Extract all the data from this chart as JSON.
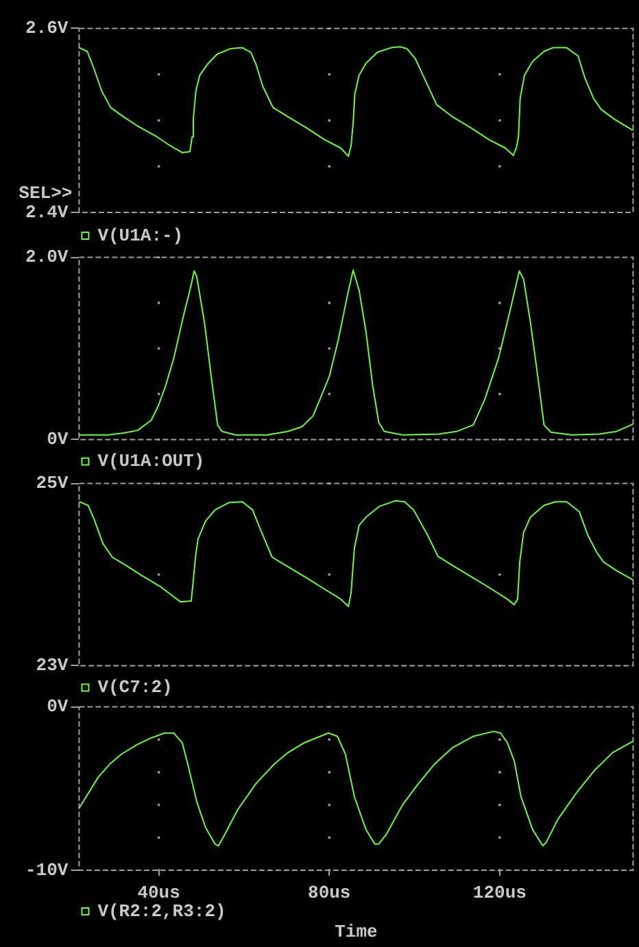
{
  "chart_data": [
    {
      "type": "line",
      "annotations": [
        "SEL>>"
      ],
      "xlim": [
        21.3,
        151.3
      ],
      "xticks": [
        40,
        80,
        120
      ],
      "ylim": [
        2.4,
        2.6
      ],
      "yticks": [
        {
          "value": 2.4,
          "label": "2.4V"
        },
        {
          "value": 2.45,
          "label": null
        },
        {
          "value": 2.5,
          "label": null
        },
        {
          "value": 2.55,
          "label": null
        },
        {
          "value": 2.6,
          "label": "2.6V"
        }
      ],
      "grid": true,
      "legend": "bottom left",
      "tick_labels": "y",
      "x": [
        21.3,
        23.2,
        24.8,
        26.6,
        28.7,
        31.7,
        35.0,
        39.3,
        42.5,
        45.5,
        47.3,
        47.8,
        48.1,
        48.7,
        49.6,
        51.6,
        53.7,
        56.9,
        59.6,
        61.6,
        62.8,
        64.4,
        66.8,
        70.3,
        74.6,
        78.9,
        82.7,
        84.5,
        85.1,
        85.6,
        86.0,
        87.0,
        88.6,
        91.3,
        94.5,
        96.6,
        98.2,
        100.2,
        102.5,
        105.2,
        108.9,
        113.2,
        117.5,
        121.3,
        123.2,
        123.9,
        124.4,
        124.8,
        125.8,
        127.7,
        130.4,
        132.5,
        135.7,
        138.4,
        140.0,
        142.0,
        143.8,
        147.0,
        151.3
      ],
      "series": [
        {
          "name": "V(U1A:-)",
          "color": "#66ff33",
          "values": [
            2.579,
            2.575,
            2.556,
            2.532,
            2.514,
            2.504,
            2.494,
            2.483,
            2.473,
            2.465,
            2.466,
            2.482,
            2.502,
            2.532,
            2.549,
            2.562,
            2.572,
            2.578,
            2.579,
            2.574,
            2.561,
            2.537,
            2.514,
            2.504,
            2.492,
            2.479,
            2.47,
            2.461,
            2.472,
            2.497,
            2.529,
            2.549,
            2.562,
            2.574,
            2.579,
            2.58,
            2.578,
            2.567,
            2.544,
            2.517,
            2.504,
            2.492,
            2.479,
            2.47,
            2.462,
            2.47,
            2.482,
            2.524,
            2.549,
            2.564,
            2.575,
            2.579,
            2.579,
            2.57,
            2.546,
            2.524,
            2.512,
            2.501,
            2.489
          ]
        }
      ]
    },
    {
      "type": "line",
      "xlim": [
        21.3,
        151.3
      ],
      "xticks": [
        40,
        80,
        120
      ],
      "ylim": [
        0,
        2
      ],
      "yticks": [
        {
          "value": 0,
          "label": "0V"
        },
        {
          "value": 0.5,
          "label": null
        },
        {
          "value": 1,
          "label": null
        },
        {
          "value": 1.5,
          "label": null
        },
        {
          "value": 2,
          "label": "2.0V"
        }
      ],
      "grid": true,
      "legend": "bottom left",
      "tick_labels": "y",
      "x": [
        21.3,
        28.0,
        31.7,
        35.0,
        38.2,
        39.8,
        41.6,
        43.5,
        45.7,
        47.3,
        48.3,
        48.9,
        50.7,
        52.3,
        53.8,
        54.8,
        58.0,
        65.5,
        70.3,
        73.6,
        76.2,
        77.8,
        80.0,
        82.1,
        84.3,
        85.6,
        87.0,
        88.6,
        90.2,
        91.6,
        92.9,
        97.2,
        105.7,
        110.0,
        113.8,
        116.5,
        119.7,
        122.3,
        124.6,
        125.6,
        127.2,
        128.8,
        130.4,
        132.0,
        136.8,
        143.3,
        147.5,
        151.3
      ],
      "series": [
        {
          "name": "V(U1A:OUT)",
          "color": "#66ff33",
          "values": [
            0.05,
            0.05,
            0.07,
            0.1,
            0.21,
            0.36,
            0.59,
            0.89,
            1.34,
            1.64,
            1.85,
            1.79,
            1.29,
            0.69,
            0.16,
            0.09,
            0.05,
            0.05,
            0.09,
            0.14,
            0.26,
            0.44,
            0.69,
            1.09,
            1.59,
            1.86,
            1.64,
            1.19,
            0.59,
            0.19,
            0.09,
            0.05,
            0.06,
            0.09,
            0.16,
            0.44,
            0.89,
            1.39,
            1.85,
            1.76,
            1.29,
            0.74,
            0.16,
            0.08,
            0.05,
            0.06,
            0.09,
            0.17
          ]
        }
      ]
    },
    {
      "type": "line",
      "xlim": [
        21.3,
        151.3
      ],
      "xticks": [
        40,
        80,
        120
      ],
      "ylim": [
        23,
        25
      ],
      "yticks": [
        {
          "value": 23,
          "label": "23V"
        },
        {
          "value": 24,
          "label": null
        },
        {
          "value": 25,
          "label": "25V"
        }
      ],
      "grid": true,
      "legend": "bottom left",
      "tick_labels": "y",
      "x": [
        21.3,
        23.4,
        24.8,
        26.9,
        29.1,
        32.3,
        36.0,
        40.3,
        45.1,
        47.6,
        48.0,
        48.6,
        49.2,
        51.0,
        53.2,
        56.4,
        59.6,
        62.0,
        63.9,
        66.6,
        69.8,
        74.1,
        78.9,
        82.7,
        84.5,
        85.1,
        85.9,
        87.0,
        88.6,
        91.8,
        95.5,
        97.7,
        99.8,
        103.0,
        105.5,
        108.9,
        113.2,
        118.1,
        121.8,
        123.4,
        124.2,
        124.7,
        125.6,
        127.2,
        130.4,
        133.1,
        135.7,
        138.7,
        140.6,
        142.7,
        144.3,
        147.5,
        151.3
      ],
      "series": [
        {
          "name": "V(C7:2)",
          "color": "#66ff33",
          "values": [
            24.8,
            24.76,
            24.61,
            24.34,
            24.19,
            24.1,
            23.99,
            23.87,
            23.7,
            23.71,
            23.89,
            24.19,
            24.39,
            24.59,
            24.71,
            24.79,
            24.8,
            24.71,
            24.49,
            24.19,
            24.1,
            23.98,
            23.84,
            23.73,
            23.65,
            23.79,
            24.29,
            24.54,
            24.63,
            24.75,
            24.81,
            24.8,
            24.71,
            24.44,
            24.2,
            24.1,
            23.98,
            23.84,
            23.73,
            23.67,
            23.73,
            24.14,
            24.46,
            24.63,
            24.76,
            24.8,
            24.8,
            24.69,
            24.44,
            24.25,
            24.14,
            24.04,
            23.94
          ]
        }
      ]
    },
    {
      "type": "line",
      "xlabel": "Time",
      "xlim": [
        21.3,
        151.3
      ],
      "xticks": [
        {
          "value": 40,
          "label": "40us"
        },
        {
          "value": 80,
          "label": "80us"
        },
        {
          "value": 120,
          "label": "120us"
        }
      ],
      "ylim": [
        -10,
        0
      ],
      "yticks": [
        {
          "value": -10,
          "label": "-10V"
        },
        {
          "value": -8,
          "label": null
        },
        {
          "value": -6,
          "label": null
        },
        {
          "value": -4,
          "label": null
        },
        {
          "value": -2,
          "label": null
        },
        {
          "value": 0,
          "label": "0V"
        }
      ],
      "grid": true,
      "legend": "bottom left",
      "x": [
        21.3,
        23.2,
        25.8,
        28.5,
        31.2,
        35.0,
        38.2,
        41.4,
        43.5,
        45.5,
        46.8,
        48.9,
        51.0,
        53.2,
        54.0,
        55.3,
        58.5,
        62.8,
        67.1,
        70.3,
        74.1,
        77.9,
        79.8,
        81.9,
        83.8,
        85.9,
        88.6,
        90.7,
        91.6,
        93.4,
        97.2,
        100.9,
        104.7,
        108.9,
        113.8,
        118.6,
        120.2,
        121.8,
        123.4,
        125.0,
        127.7,
        130.1,
        130.9,
        133.6,
        137.9,
        142.2,
        146.5,
        151.3
      ],
      "series": [
        {
          "name": "V(R2:2,R3:2)",
          "color": "#66ff33",
          "values": [
            -6.2,
            -5.4,
            -4.3,
            -3.5,
            -2.9,
            -2.3,
            -1.9,
            -1.6,
            -1.6,
            -2.2,
            -3.5,
            -5.8,
            -7.4,
            -8.4,
            -8.5,
            -7.9,
            -6.3,
            -4.7,
            -3.5,
            -2.8,
            -2.2,
            -1.8,
            -1.6,
            -1.8,
            -2.9,
            -5.5,
            -7.5,
            -8.4,
            -8.4,
            -7.8,
            -6.0,
            -4.7,
            -3.5,
            -2.5,
            -1.8,
            -1.5,
            -1.6,
            -2.2,
            -3.3,
            -5.5,
            -7.5,
            -8.5,
            -8.3,
            -6.9,
            -5.3,
            -3.9,
            -2.8,
            -2.1
          ]
        }
      ]
    }
  ]
}
